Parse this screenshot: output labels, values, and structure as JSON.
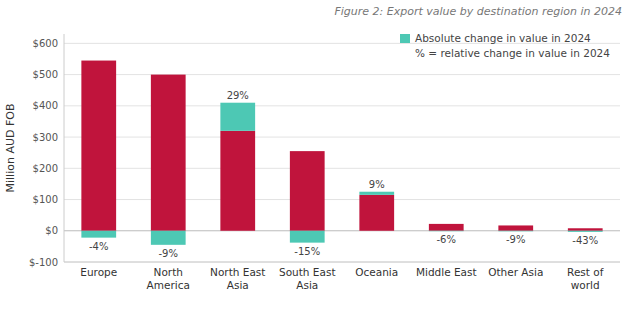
{
  "chart_data": {
    "type": "bar",
    "title": "Figure 2: Export value by destination region in 2024",
    "categories": [
      "Europe",
      "North\nAmerica",
      "North East\nAsia",
      "South East\nAsia",
      "Oceania",
      "Middle East",
      "Other Asia",
      "Rest of\nworld"
    ],
    "series": [
      {
        "color": "#C0143C",
        "values": [
          545,
          500,
          320,
          255,
          115,
          22,
          17,
          8
        ]
      },
      {
        "name": "Absolute change in value in 2024",
        "color": "#4DC8B4",
        "values": [
          -22,
          -45,
          90,
          -38,
          10,
          -1.4,
          -1.7,
          -3.5
        ],
        "pct_labels": [
          "-4%",
          "-9%",
          "29%",
          "-15%",
          "9%",
          "-6%",
          "-9%",
          "-43%"
        ]
      }
    ],
    "stacked": true,
    "y_label": "Million AUD FOB",
    "ylim": [
      -100,
      630
    ],
    "yticks": [
      {
        "value": -100,
        "label": "$-100"
      },
      {
        "value": 0,
        "label": "$0"
      },
      {
        "value": 100,
        "label": "$100"
      },
      {
        "value": 200,
        "label": "$200"
      },
      {
        "value": 300,
        "label": "$300"
      },
      {
        "value": 400,
        "label": "$400"
      },
      {
        "value": 500,
        "label": "$500"
      },
      {
        "value": 600,
        "label": "$600"
      }
    ],
    "grid": true,
    "legend": "upper right",
    "annotations": [
      "% = relative change in value in 2024"
    ]
  }
}
